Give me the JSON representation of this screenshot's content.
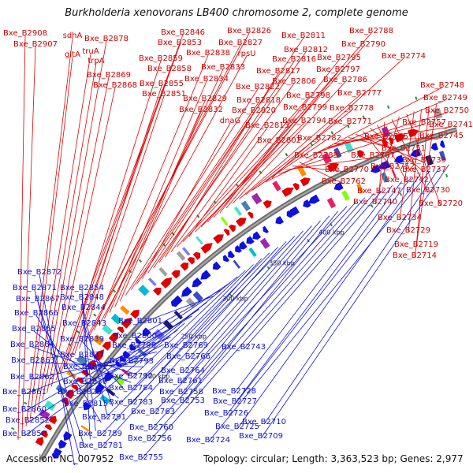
{
  "title": "Burkholderia xenovorans LB400 chromosome 2, complete genome",
  "accession": "Accession: NC_007952",
  "summary": "Topology: circular; Length: 3,363,523 bp; Genes: 2,977",
  "colors": {
    "forward": "#dd0000",
    "reverse": "#1a1aee",
    "backbone": "#777777"
  },
  "position_labels": [
    "200 kbp",
    "250 kbp",
    "300 kbp",
    "350 kbp",
    "400 kbp"
  ],
  "forward_labels": [
    "Bxe_B2908",
    "Bxe_B2907",
    "sdhA",
    "gltA",
    "truA",
    "trpA",
    "Bxe_B2878",
    "Bxe_B2869",
    "Bxe_B2868",
    "Bxe_B2846",
    "Bxe_B2853",
    "Bxe_B2859",
    "Bxe_B2858",
    "Bxe_B2855",
    "Bxe_B2851",
    "Bxe_B2826",
    "Bxe_B2827",
    "Bxe_B2838",
    "rpsU",
    "Bxe_B2833",
    "Bxe_B2834",
    "Bxe_B2829",
    "Bxe_B2832",
    "Bxe_B2822",
    "Bxe_B2818",
    "Bxe_B2820",
    "dnaG",
    "Bxe_B2811",
    "Bxe_B2812",
    "Bxe_B2816",
    "Bxe_B2817",
    "Bxe_B2806",
    "Bxe_B2798",
    "Bxe_B2799",
    "Bxe_B2813",
    "Bxe_B2794",
    "Bxe_B2802",
    "Bxe_B2788",
    "Bxe_B2790",
    "Bxe_B2795",
    "Bxe_B2797",
    "Bxe_B2786",
    "Bxe_B2777",
    "Bxe_B2778",
    "Bxe_B2771",
    "Bxe_B2782",
    "Bxe_B2785",
    "Bxe_B2774",
    "Bxe_B2765",
    "Bxe_B2767",
    "Bxe_B2770",
    "Bxe_B2762",
    "Bxe_B2748",
    "Bxe_B2749",
    "Bxe_B2750",
    "Bxe_B2757",
    "Bxe_B2741",
    "Bxe_B2745",
    "Bxe_B2751",
    "Bxe_B2739",
    "Bxe_B2752",
    "Bxe_B2737",
    "Bxe_B2742",
    "Bxe_B2747",
    "Bxe_B2730",
    "Bxe_B2740",
    "Bxe_B2720",
    "Bxe_B2734",
    "Bxe_B2729",
    "Bxe_B2719",
    "Bxe_B2714"
  ],
  "reverse_labels": [
    "Bxe_B2872",
    "Bxe_B2871",
    "Bxe_B2867",
    "Bxe_B2854",
    "Bxe_B2848",
    "Bxe_B2866",
    "Bxe_B2844",
    "Bxe_B2843",
    "Bxe_B2865",
    "Bxe_B2839",
    "Bxe_B2864",
    "Bxe_B2837",
    "Bxe_B2863",
    "Bxe_B2831",
    "Bxe_B2862",
    "Bxe_B2830",
    "Bxe_B2861",
    "Bxe_B2825",
    "Bxe_B2815",
    "Bxe_B2860",
    "Bxe_B2852",
    "Bxe_B2850",
    "Bxe_B2801",
    "Bxe_B2800",
    "Bxe_B2796",
    "Bxe_B2793",
    "Bxe_B2792",
    "Bxe_B2784",
    "Bxe_B2783",
    "Bxe_B2791",
    "Bxe_B2789",
    "Bxe_B2781",
    "Bxe_B2769",
    "Bxe_B2766",
    "Bxe_B2764",
    "Bxe_B2761",
    "Bxe_B2758",
    "Bxe_B2753",
    "Bxe_B2763",
    "Bxe_B2760",
    "Bxe_B2756",
    "Bxe_B2755",
    "Bxe_B2743",
    "Bxe_B2728",
    "Bxe_B2727",
    "Bxe_B2726",
    "Bxe_B2725",
    "Bxe_B2724",
    "Bxe_B2710",
    "Bxe_B2709"
  ]
}
